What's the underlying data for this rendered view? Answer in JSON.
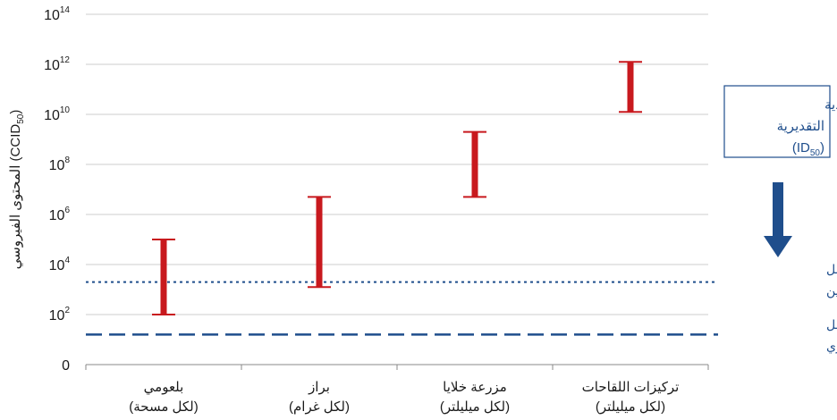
{
  "chart_data": {
    "type": "range-bar",
    "y_scale": "log",
    "y_ticks": [
      {
        "label_base": "0",
        "label_exp": "",
        "value": 1
      },
      {
        "label_base": "10",
        "label_exp": "2",
        "value": 100
      },
      {
        "label_base": "10",
        "label_exp": "4",
        "value": 10000
      },
      {
        "label_base": "10",
        "label_exp": "6",
        "value": 1000000
      },
      {
        "label_base": "10",
        "label_exp": "8",
        "value": 100000000
      },
      {
        "label_base": "10",
        "label_exp": "10",
        "value": 10000000000
      },
      {
        "label_base": "10",
        "label_exp": "12",
        "value": 1000000000000
      },
      {
        "label_base": "10",
        "label_exp": "14",
        "value": 100000000000000
      }
    ],
    "ylim_exp": [
      0,
      14
    ],
    "ylabel": {
      "pre": "المحتوى الفيروسي (CCID",
      "sub": "50",
      "post": ")"
    },
    "categories": [
      {
        "line1": "بلعومي",
        "line2": "(لكل مسحة)"
      },
      {
        "line1": "براز",
        "line2": "(لكل غرام)"
      },
      {
        "line1": "مزرعة خلايا",
        "line2": "(لكل ميليلتر)"
      },
      {
        "line1": "تركيزات اللقاحات",
        "line2": "(لكل ميليلتر)"
      }
    ],
    "ranges_log10": [
      {
        "low": 2,
        "high": 5
      },
      {
        "low": 3.1,
        "high": 6.7
      },
      {
        "low": 6.7,
        "high": 9.3
      },
      {
        "low": 10.1,
        "high": 12.1
      }
    ],
    "reference_lines_log10": [
      {
        "value": 3.3,
        "style": "dotted",
        "label": [
          "لقاح شلل",
          "الأطفال - سابين"
        ]
      },
      {
        "value": 1.2,
        "style": "dashed",
        "label": [
          "لقاح شلل",
          "الأطفال - البري"
        ]
      }
    ],
    "annotation_box": {
      "line1": "الجرعة المُعدية",
      "line2_pre": "التقديرية (ID",
      "line2_sub": "50",
      "line2_post": ")"
    },
    "grid": true,
    "colors": {
      "range_bar": "#c8191e",
      "reference": "#1f4e8c",
      "grid": "#cccccc",
      "axis": "#888888"
    }
  }
}
